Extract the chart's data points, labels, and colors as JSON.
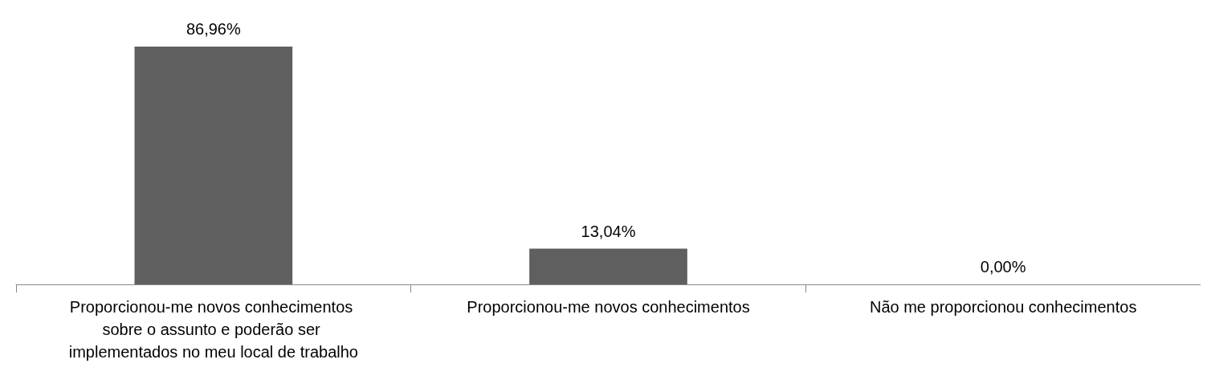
{
  "chart_data": {
    "type": "bar",
    "categories": [
      "Proporcionou-me novos conhecimentos sobre o assunto e poderão ser implementados no meu local de trabalho",
      "Proporcionou-me novos conhecimentos",
      "Não me proporcionou conhecimentos"
    ],
    "values": [
      86.96,
      13.04,
      0
    ],
    "value_labels": [
      "86,96%",
      "13,04%",
      "0,00%"
    ],
    "color": "#5f5f5f"
  }
}
